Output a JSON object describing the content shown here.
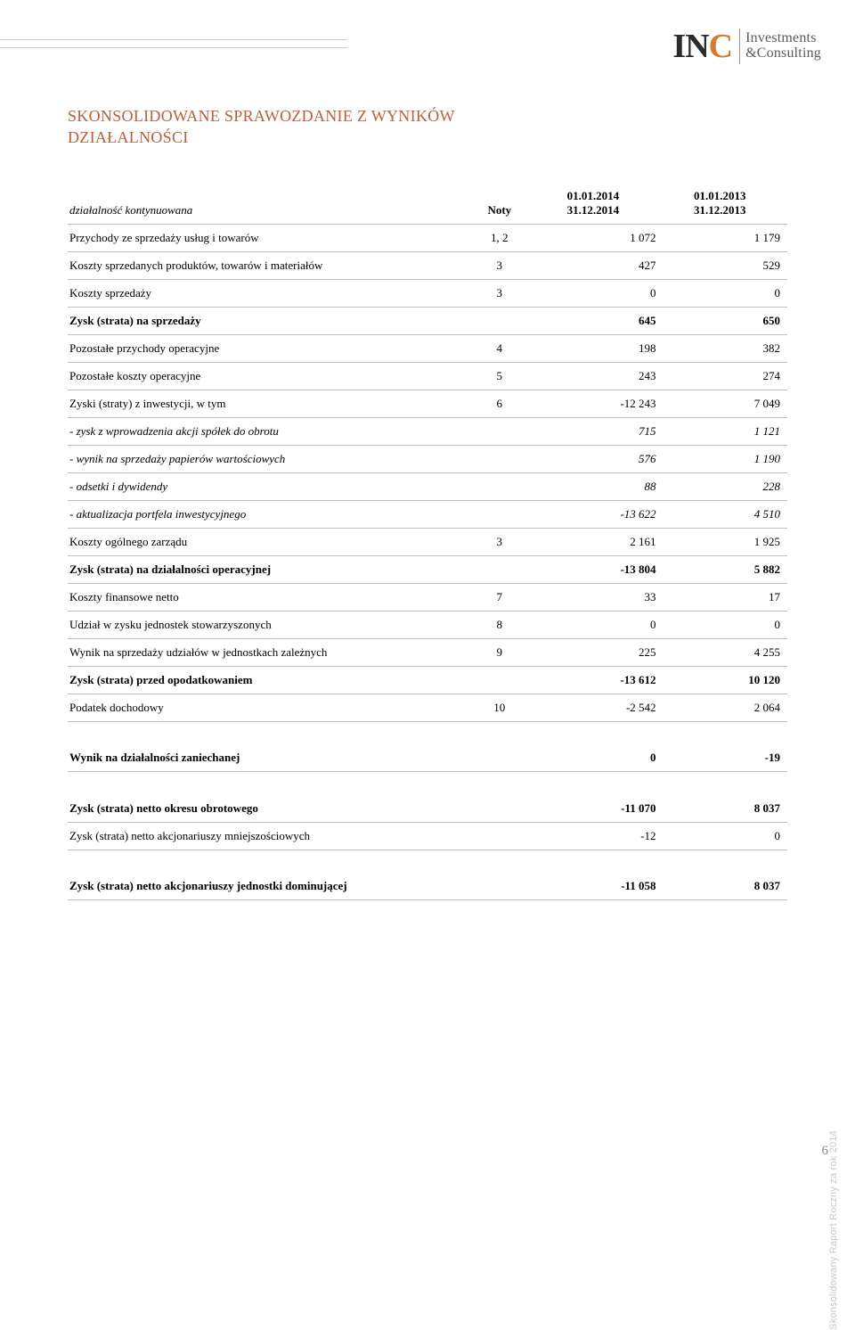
{
  "logo": {
    "part1": "IN",
    "part2": "C",
    "line1": "Investments",
    "line2": "&Consulting"
  },
  "title": {
    "line1": "SKONSOLIDOWANE SPRAWOZDANIE Z WYNIKÓW",
    "line2": "DZIAŁALNOŚCI"
  },
  "header": {
    "label": "działalność kontynuowana",
    "noty": "Noty",
    "period1_top": "01.01.2014",
    "period1_bot": "31.12.2014",
    "period2_top": "01.01.2013",
    "period2_bot": "31.12.2013"
  },
  "rows": [
    {
      "label": "Przychody ze sprzedaży usług  i towarów",
      "noty": "1, 2",
      "v1": "1 072",
      "v2": "1 179",
      "bold": false,
      "italic": false
    },
    {
      "label": "Koszty sprzedanych produktów, towarów i materiałów",
      "noty": "3",
      "v1": "427",
      "v2": "529",
      "bold": false,
      "italic": false
    },
    {
      "label": "Koszty sprzedaży",
      "noty": "3",
      "v1": "0",
      "v2": "0",
      "bold": false,
      "italic": false
    },
    {
      "label": "Zysk (strata) na sprzedaży",
      "noty": "",
      "v1": "645",
      "v2": "650",
      "bold": true,
      "italic": false
    },
    {
      "label": "Pozostałe przychody operacyjne",
      "noty": "4",
      "v1": "198",
      "v2": "382",
      "bold": false,
      "italic": false
    },
    {
      "label": "Pozostałe koszty operacyjne",
      "noty": "5",
      "v1": "243",
      "v2": "274",
      "bold": false,
      "italic": false
    },
    {
      "label": "Zyski (straty) z inwestycji, w tym",
      "noty": "6",
      "v1": "-12 243",
      "v2": "7 049",
      "bold": false,
      "italic": false
    },
    {
      "label": "  - zysk z wprowadzenia akcji spółek do obrotu",
      "noty": "",
      "v1": "715",
      "v2": "1 121",
      "bold": false,
      "italic": true
    },
    {
      "label": "  - wynik na sprzedaży papierów wartościowych",
      "noty": "",
      "v1": "576",
      "v2": "1 190",
      "bold": false,
      "italic": true
    },
    {
      "label": "  - odsetki i dywidendy",
      "noty": "",
      "v1": "88",
      "v2": "228",
      "bold": false,
      "italic": true
    },
    {
      "label": "  - aktualizacja portfela inwestycyjnego",
      "noty": "",
      "v1": "-13 622",
      "v2": "4 510",
      "bold": false,
      "italic": true
    },
    {
      "label": "Koszty ogólnego zarządu",
      "noty": "3",
      "v1": "2 161",
      "v2": "1 925",
      "bold": false,
      "italic": false
    },
    {
      "label": "Zysk (strata) na działalności operacyjnej",
      "noty": "",
      "v1": "-13 804",
      "v2": "5 882",
      "bold": true,
      "italic": false
    },
    {
      "label": "Koszty finansowe netto",
      "noty": "7",
      "v1": "33",
      "v2": "17",
      "bold": false,
      "italic": false
    },
    {
      "label": "Udział w zysku jednostek stowarzyszonych",
      "noty": "8",
      "v1": "0",
      "v2": "0",
      "bold": false,
      "italic": false
    },
    {
      "label": "Wynik na sprzedaży udziałów w jednostkach zależnych",
      "noty": "9",
      "v1": "225",
      "v2": "4 255",
      "bold": false,
      "italic": false
    },
    {
      "label": "Zysk (strata) przed opodatkowaniem",
      "noty": "",
      "v1": "-13 612",
      "v2": "10 120",
      "bold": true,
      "italic": false
    },
    {
      "label": "Podatek dochodowy",
      "noty": "10",
      "v1": "-2 542",
      "v2": "2 064",
      "bold": false,
      "italic": false
    }
  ],
  "group2": [
    {
      "label": "Wynik na działalności zaniechanej",
      "noty": "",
      "v1": "0",
      "v2": "-19",
      "bold": true,
      "italic": false
    }
  ],
  "group3": [
    {
      "label": "Zysk (strata) netto okresu obrotowego",
      "noty": "",
      "v1": "-11 070",
      "v2": "8 037",
      "bold": true,
      "italic": false
    },
    {
      "label": "Zysk (strata) netto akcjonariuszy mniejszościowych",
      "noty": "",
      "v1": "-12",
      "v2": "0",
      "bold": false,
      "italic": false
    }
  ],
  "group4": [
    {
      "label": "Zysk (strata) netto akcjonariuszy jednostki dominującej",
      "noty": "",
      "v1": "-11 058",
      "v2": "8 037",
      "bold": true,
      "italic": false
    }
  ],
  "footer": {
    "rotated": "Skonsolidowany Raport Roczny za rok 2014",
    "page": "6"
  }
}
